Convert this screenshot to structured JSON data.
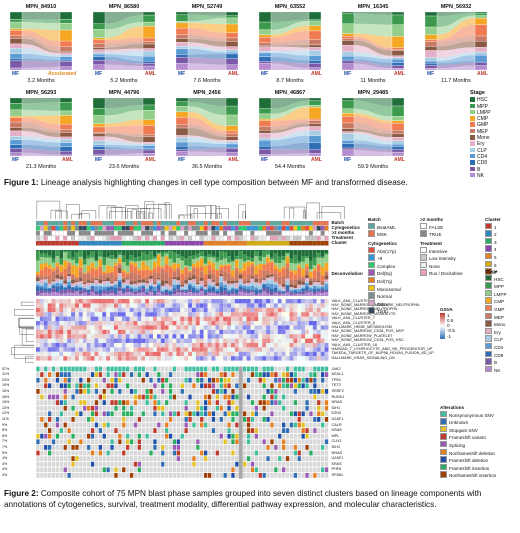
{
  "figure1": {
    "panels": [
      {
        "id": "MPN_84910",
        "left": "MF",
        "right": "Accelerated",
        "right_type": "accelerated",
        "duration": "3.2 Months"
      },
      {
        "id": "MPN_86580",
        "left": "MF",
        "right": "AML",
        "right_type": "aml",
        "duration": "5.2 Months"
      },
      {
        "id": "MPN_52749",
        "left": "MF",
        "right": "AML",
        "right_type": "aml",
        "duration": "7.6 Months"
      },
      {
        "id": "MPN_63552",
        "left": "MF",
        "right": "AML",
        "right_type": "aml",
        "duration": "8.7 Months"
      },
      {
        "id": "MPN_16345",
        "left": "MF",
        "right": "AML",
        "right_type": "aml",
        "duration": "11 Months"
      },
      {
        "id": "MPN_56932",
        "left": "MF",
        "right": "AML",
        "right_type": "aml",
        "duration": "11.7 Months"
      },
      {
        "id": "MPN_56293",
        "left": "MF",
        "right": "AML",
        "right_type": "aml",
        "duration": "21.3 Months"
      },
      {
        "id": "MPN_44796",
        "left": "MF",
        "right": "AML",
        "right_type": "aml",
        "duration": "23.6 Months"
      },
      {
        "id": "MPN_2456",
        "left": "MF",
        "right": "AML",
        "right_type": "aml",
        "duration": "36.5 Months"
      },
      {
        "id": "MPN_46867",
        "left": "MF",
        "right": "AML",
        "right_type": "aml",
        "duration": "54.4 Months"
      },
      {
        "id": "MPN_29485",
        "left": "MF",
        "right": "AML",
        "right_type": "aml",
        "duration": "59.9 Months"
      }
    ],
    "stage_legend": {
      "title": "Stage",
      "items": [
        {
          "label": "HSC",
          "color": "#1f6e3a"
        },
        {
          "label": "MPP",
          "color": "#3c9a4e"
        },
        {
          "label": "LMPP",
          "color": "#93cf8a"
        },
        {
          "label": "CMP",
          "color": "#f5a623"
        },
        {
          "label": "GMP",
          "color": "#f07b52"
        },
        {
          "label": "MEP",
          "color": "#c97a64"
        },
        {
          "label": "Mono",
          "color": "#8a5a44"
        },
        {
          "label": "Ery",
          "color": "#e3b0c8"
        },
        {
          "label": "CLP",
          "color": "#a6cde3"
        },
        {
          "label": "CD4",
          "color": "#5b9bd5"
        },
        {
          "label": "CD8",
          "color": "#2f6db5"
        },
        {
          "label": "B",
          "color": "#7a5aa6"
        },
        {
          "label": "NK",
          "color": "#b58bd0"
        }
      ]
    },
    "caption_bold": "Figure 1:",
    "caption_text": " Lineage analysis highlighting changes in cell type composition between MF and transformed disease."
  },
  "figure2": {
    "top_labels": [
      "Batch",
      "Cytogenetics",
      ">2 months",
      "Treatment",
      "Cluster"
    ],
    "deconv_label": "Deconvolution",
    "legends": {
      "batch": {
        "title": "Batch",
        "items": [
          {
            "label": "BeatAML",
            "color": "#5aa8a0"
          },
          {
            "label": "MSK",
            "color": "#e8734e"
          }
        ]
      },
      "two_months": {
        "title": ">2 months",
        "items": [
          {
            "label": "FALSE",
            "color": "#ffffff"
          },
          {
            "label": "TRUE",
            "color": "#888888"
          }
        ]
      },
      "cluster": {
        "title": "Cluster",
        "items": [
          {
            "label": "1",
            "color": "#c0392b"
          },
          {
            "label": "2",
            "color": "#2e86c1"
          },
          {
            "label": "3",
            "color": "#27ae60"
          },
          {
            "label": "4",
            "color": "#8e44ad"
          },
          {
            "label": "5",
            "color": "#e67e22"
          },
          {
            "label": "6",
            "color": "#d4ac0d"
          },
          {
            "label": "7",
            "color": "#a04000"
          }
        ]
      },
      "cytogenetics": {
        "title": "Cytogenetics",
        "items": [
          {
            "label": "Abn(17p)",
            "color": "#e74c3c"
          },
          {
            "label": "+8",
            "color": "#3498db"
          },
          {
            "label": "Complex",
            "color": "#2ecc71"
          },
          {
            "label": "Del(5q)",
            "color": "#9b59b6"
          },
          {
            "label": "Del(7q)",
            "color": "#e67e22"
          },
          {
            "label": "Monosomal",
            "color": "#f1c40f"
          },
          {
            "label": "Normal",
            "color": "#7f8c8d"
          },
          {
            "label": "Other",
            "color": "#d7a3c8"
          },
          {
            "label": "Tri(8)",
            "color": "#34495e"
          }
        ]
      },
      "treatment": {
        "title": "Treatment",
        "items": [
          {
            "label": "Intensive",
            "color": "#ffffff"
          },
          {
            "label": "Low Intensity",
            "color": "#c8c8c8"
          },
          {
            "label": "None",
            "color": "#ebebeb"
          },
          {
            "label": "Rux / Decitabine",
            "color": "#e8a0b4"
          }
        ]
      },
      "stage": {
        "title": "Stage",
        "items": [
          {
            "label": "HSC",
            "color": "#1f6e3a"
          },
          {
            "label": "MPP",
            "color": "#3c9a4e"
          },
          {
            "label": "LMPP",
            "color": "#93cf8a"
          },
          {
            "label": "CMP",
            "color": "#f5a623"
          },
          {
            "label": "GMP",
            "color": "#f07b52"
          },
          {
            "label": "MEP",
            "color": "#c97a64"
          },
          {
            "label": "Mono",
            "color": "#8a5a44"
          },
          {
            "label": "Ery",
            "color": "#e3b0c8"
          },
          {
            "label": "CLP",
            "color": "#a6cde3"
          },
          {
            "label": "CD4",
            "color": "#5b9bd5"
          },
          {
            "label": "CD8",
            "color": "#2f6db5"
          },
          {
            "label": "B",
            "color": "#7a5aa6"
          },
          {
            "label": "NK",
            "color": "#b58bd0"
          }
        ]
      },
      "gsva": {
        "title": "GSVA",
        "ticks": [
          "1",
          "0.5",
          "0",
          "-0.5",
          "-1"
        ]
      },
      "alterations": {
        "title": "Alterations",
        "items": [
          {
            "label": "Nonsynonymous SNV",
            "color": "#3fbf9f"
          },
          {
            "label": "Unknown",
            "color": "#2f6db5"
          },
          {
            "label": "Stopgain SNV",
            "color": "#e6c229"
          },
          {
            "label": "Frameshift variant",
            "color": "#c0392b"
          },
          {
            "label": "Splicing",
            "color": "#9b59b6"
          },
          {
            "label": "Nonframeshift deletion",
            "color": "#e67e22"
          },
          {
            "label": "Frameshift deletion",
            "color": "#1f4fa8"
          },
          {
            "label": "Frameshift insertion",
            "color": "#27ae60"
          },
          {
            "label": "Nonframeshift insertion",
            "color": "#a04000"
          }
        ]
      }
    },
    "gsva_rows": [
      "VALK_AML_CLUSTER_5",
      "HAY_BONE_MARROW_IMMATURE_NEUTROPHIL",
      "HAY_BONE_MARROW_NEUTROPHIL",
      "HAY_BONE_MARROW_MONOCYTE",
      "VALK_AML_CLUSTER_7",
      "VALK_AML_CLUSTER_8",
      "HALLMARK_HEME_METABOLISM",
      "HAY_BONE_MARROW_CD34_POS_MKP",
      "HAY_BONE_MARROW_PLATELET",
      "HAY_BONE_MARROW_CD34_POS_HSC",
      "VALK_AML_CLUSTER_16",
      "HADDAD_T_LYMPHOCYTE_AND_NK_PROGENITOR_UP",
      "TAKEDA_TARGETS_OF_NUP98_HOXA9_FUSION_8D_UP",
      "HALLMARK_KRAS_SIGNALING_DN"
    ],
    "genes": [
      "JAK2",
      "ASXL1",
      "TP53",
      "TET2",
      "SRSF2",
      "RUNX1",
      "NRAS",
      "IDH1",
      "EZH2",
      "U2AF1",
      "CALR",
      "KRAS",
      "MPL",
      "CUX1",
      "IDH2",
      "NRAS",
      "U2AF1",
      "KRAS",
      "PHF6",
      "SF3B1"
    ],
    "gene_pcts": [
      "57%",
      "31%",
      "23%",
      "19%",
      "16%",
      "16%",
      "15%",
      "13%",
      "12%",
      "11%",
      "9%",
      "8%",
      "8%",
      "7%",
      "7%",
      "5%",
      "4%",
      "4%",
      "4%",
      "4%"
    ],
    "caption_bold": "Figure 2:",
    "caption_text": " Composite cohort of 75 MPN blast phase samples grouped into seven distinct clusters based on lineage components with annotations of cytogenetics, survival, treatment modality, differential pathway expression, and molecular characteristics."
  }
}
